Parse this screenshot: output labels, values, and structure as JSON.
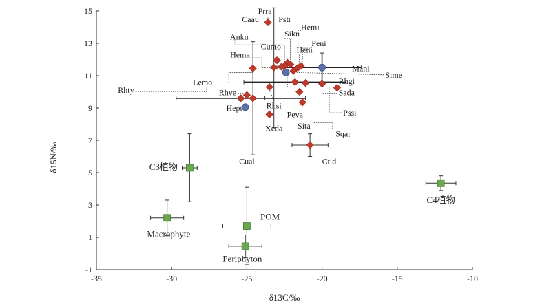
{
  "chart_data": {
    "type": "scatter",
    "title": "",
    "xlabel": "δ13C/‰",
    "ylabel": "δ15N/‰",
    "xlim": [
      -35,
      -10
    ],
    "ylim": [
      -1,
      15
    ],
    "xticks": [
      -35,
      -30,
      -25,
      -20,
      -15,
      -10
    ],
    "yticks": [
      -1,
      1,
      3,
      5,
      7,
      9,
      11,
      13,
      15
    ],
    "grid": false,
    "colors": {
      "fish": "#c0392b",
      "invert": "#5b6fa8",
      "source": "#6aa84f",
      "axis": "#333333"
    },
    "sources": [
      {
        "label": "C3植物",
        "x": -28.8,
        "y": 5.3,
        "xerr": 0.5,
        "yerr": 2.1
      },
      {
        "label": "Macrophyte",
        "x": -30.3,
        "y": 2.2,
        "xerr": 1.1,
        "yerr": 1.1
      },
      {
        "label": "POM",
        "x": -25.0,
        "y": 1.7,
        "xerr": 1.6,
        "yerr": 2.4
      },
      {
        "label": "Periphyton",
        "x": -25.1,
        "y": 0.45,
        "xerr": 1.1,
        "yerr": 0.7
      },
      {
        "label": "C4植物",
        "x": -12.1,
        "y": 4.35,
        "xerr": 1.0,
        "yerr": 0.45
      }
    ],
    "consumers": [
      {
        "label": "Prra",
        "x": -23.6,
        "y": 14.3,
        "kind": "fish"
      },
      {
        "label": "Caau",
        "x": -23.2,
        "y": 11.5,
        "kind": "fish",
        "xerr": 0.2,
        "yerr": 3.7
      },
      {
        "label": "Pstr",
        "x": -22.3,
        "y": 11.8,
        "kind": "fish"
      },
      {
        "label": "Hemi",
        "x": -21.9,
        "y": 11.3,
        "kind": "fish"
      },
      {
        "label": "Sikn",
        "x": -22.1,
        "y": 11.7,
        "kind": "fish"
      },
      {
        "label": "Anku",
        "x": -22.5,
        "y": 11.6,
        "kind": "fish"
      },
      {
        "label": "Cumo",
        "x": -23.0,
        "y": 11.95,
        "kind": "fish"
      },
      {
        "label": "Heni",
        "x": -21.6,
        "y": 11.5,
        "kind": "fish"
      },
      {
        "label": "Peni",
        "x": -21.4,
        "y": 11.6,
        "kind": "fish"
      },
      {
        "label": "Hema",
        "x": -22.7,
        "y": 11.55,
        "kind": "fish"
      },
      {
        "label": "Mani",
        "x": -20.0,
        "y": 11.5,
        "kind": "invert",
        "xerr": 2.6,
        "yerr": 0.9
      },
      {
        "label": "Sime",
        "x": -22.4,
        "y": 11.2,
        "kind": "invert"
      },
      {
        "label": "Lemo",
        "x": -24.6,
        "y": 11.45,
        "kind": "fish"
      },
      {
        "label": "Rhgi",
        "x": -21.1,
        "y": 10.55,
        "kind": "fish"
      },
      {
        "label": "Rhty",
        "x": -25.4,
        "y": 9.6,
        "kind": "fish",
        "xerr": 4.3,
        "yerr": 0.15
      },
      {
        "label": "Rhve",
        "x": -25.0,
        "y": 9.8,
        "kind": "fish"
      },
      {
        "label": "Sada",
        "x": -19.0,
        "y": 10.25,
        "kind": "fish"
      },
      {
        "label": "Hept",
        "x": -25.1,
        "y": 9.05,
        "kind": "invert"
      },
      {
        "label": "Rhsi",
        "x": -23.5,
        "y": 10.3,
        "kind": "fish"
      },
      {
        "label": "Peva",
        "x": -21.3,
        "y": 9.35,
        "kind": "fish"
      },
      {
        "label": "Xeda",
        "x": -23.5,
        "y": 8.6,
        "kind": "fish"
      },
      {
        "label": "Sita",
        "x": -21.5,
        "y": 10.0,
        "kind": "fish"
      },
      {
        "label": "Pssi",
        "x": -20.0,
        "y": 10.5,
        "kind": "fish"
      },
      {
        "label": "Sqar",
        "x": -21.8,
        "y": 10.6,
        "kind": "fish",
        "xerr": 3.4,
        "yerr": 0.1
      },
      {
        "label": "Cual",
        "x": -24.6,
        "y": 9.6,
        "kind": "fish",
        "xerr": 0.8,
        "yerr": 3.5
      },
      {
        "label": "Ctid",
        "x": -20.8,
        "y": 6.7,
        "kind": "fish",
        "xerr": 1.2,
        "yerr": 0.7
      }
    ]
  }
}
